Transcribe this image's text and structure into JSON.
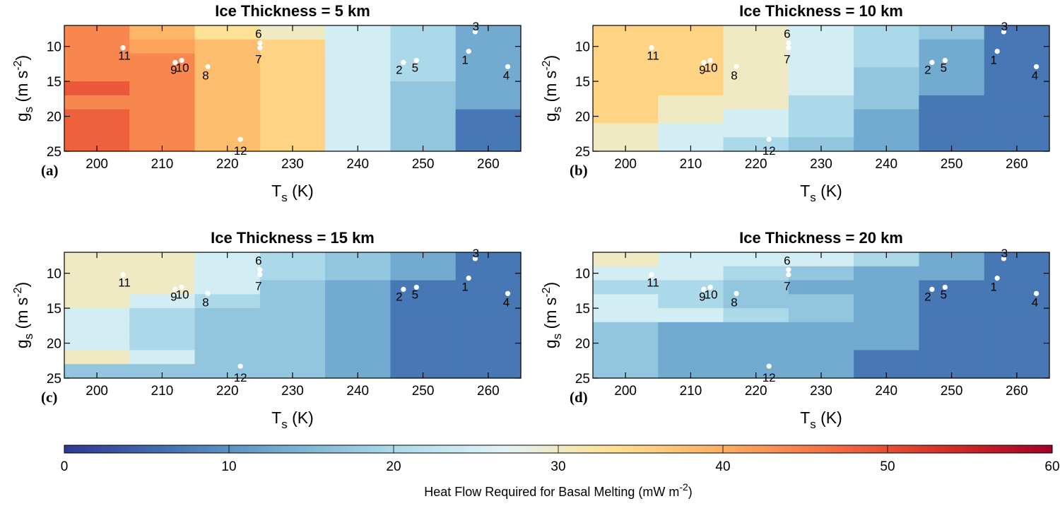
{
  "chart_data": {
    "type": "heatmap",
    "xlabel_base": "T",
    "xlabel_sub": "s",
    "xlabel_unit": "(K)",
    "ylabel_base": "g",
    "ylabel_sub": "s",
    "ylabel_unit_pre": "(m s",
    "ylabel_unit_exp": "-2",
    "ylabel_unit_post": ")",
    "x_ticks": [
      "200",
      "210",
      "220",
      "230",
      "240",
      "250",
      "260"
    ],
    "y_ticks": [
      "10",
      "15",
      "20",
      "25"
    ],
    "xlim": [
      195,
      265
    ],
    "ylim": [
      7,
      25
    ],
    "x_edges": [
      195,
      205,
      215,
      225,
      235,
      245,
      255,
      265
    ],
    "y_edges": [
      7,
      9,
      11,
      13,
      15,
      17,
      19,
      21,
      23,
      25
    ],
    "colorbar": {
      "label_pre": "Heat Flow Required for Basal Melting (mW m",
      "label_exp": "-2",
      "label_post": ")",
      "ticks": [
        "0",
        "10",
        "20",
        "30",
        "40",
        "50",
        "60"
      ],
      "range": [
        0,
        60
      ],
      "colormap": [
        "#313695",
        "#4575b4",
        "#74add1",
        "#abd9e9",
        "#e0f3f8",
        "#fee090",
        "#fdae61",
        "#f46d43",
        "#d73027",
        "#a50026"
      ]
    },
    "stations": [
      {
        "label": "1",
        "T": 257,
        "g": 10.7
      },
      {
        "label": "2",
        "T": 247,
        "g": 12.3
      },
      {
        "label": "3",
        "T": 258,
        "g": 7.9
      },
      {
        "label": "4",
        "T": 263,
        "g": 12.9
      },
      {
        "label": "5",
        "T": 249,
        "g": 12.0
      },
      {
        "label": "6",
        "T": 225,
        "g": 9.5
      },
      {
        "label": "7",
        "T": 225,
        "g": 10.2
      },
      {
        "label": "8",
        "T": 217,
        "g": 12.9
      },
      {
        "label": "9",
        "T": 212,
        "g": 12.3
      },
      {
        "label": "10",
        "T": 213,
        "g": 12.0
      },
      {
        "label": "11",
        "T": 204,
        "g": 10.2
      },
      {
        "label": "12",
        "T": 222,
        "g": 23.3
      }
    ],
    "panels": [
      {
        "letter": "(a)",
        "title": "Ice Thickness = 5 km",
        "grid": [
          [
            44,
            39,
            33,
            30,
            25,
            20,
            13
          ],
          [
            44,
            41,
            38,
            35,
            25,
            20,
            13
          ],
          [
            44,
            44,
            38,
            35,
            25,
            20,
            13
          ],
          [
            44,
            44,
            38,
            35,
            25,
            20,
            13
          ],
          [
            49,
            44,
            38,
            35,
            25,
            17,
            13
          ],
          [
            44,
            44,
            38,
            35,
            25,
            17,
            13
          ],
          [
            48,
            44,
            38,
            35,
            25,
            17,
            7
          ],
          [
            48,
            44,
            38,
            35,
            25,
            17,
            7
          ],
          [
            48,
            44,
            38,
            35,
            25,
            17,
            7
          ]
        ]
      },
      {
        "letter": "(b)",
        "title": "Ice Thickness = 10 km",
        "grid": [
          [
            35,
            35,
            30,
            25,
            20,
            17,
            7
          ],
          [
            35,
            35,
            30,
            25,
            20,
            13,
            7
          ],
          [
            35,
            35,
            30,
            25,
            20,
            13,
            7
          ],
          [
            35,
            35,
            30,
            25,
            17,
            13,
            7
          ],
          [
            35,
            35,
            30,
            25,
            17,
            13,
            7
          ],
          [
            35,
            30,
            30,
            20,
            17,
            7,
            7
          ],
          [
            35,
            30,
            25,
            20,
            13,
            7,
            7
          ],
          [
            30,
            25,
            25,
            20,
            13,
            7,
            7
          ],
          [
            30,
            25,
            20,
            17,
            13,
            7,
            7
          ]
        ]
      },
      {
        "letter": "(c)",
        "title": "Ice Thickness = 15 km",
        "grid": [
          [
            30,
            30,
            25,
            20,
            17,
            13,
            7
          ],
          [
            30,
            30,
            25,
            20,
            17,
            13,
            7
          ],
          [
            30,
            30,
            25,
            17,
            13,
            7,
            7
          ],
          [
            30,
            25,
            20,
            17,
            13,
            7,
            7
          ],
          [
            25,
            20,
            17,
            17,
            13,
            7,
            7
          ],
          [
            25,
            20,
            17,
            17,
            13,
            7,
            7
          ],
          [
            25,
            20,
            17,
            17,
            13,
            7,
            7
          ],
          [
            30,
            25,
            17,
            17,
            13,
            7,
            7
          ],
          [
            17,
            17,
            17,
            17,
            13,
            7,
            7
          ]
        ]
      },
      {
        "letter": "(d)",
        "title": "Ice Thickness = 20 km",
        "grid": [
          [
            30,
            25,
            25,
            25,
            20,
            13,
            7
          ],
          [
            25,
            25,
            20,
            17,
            13,
            13,
            7
          ],
          [
            20,
            20,
            17,
            13,
            13,
            7,
            7
          ],
          [
            25,
            20,
            17,
            17,
            13,
            7,
            7
          ],
          [
            25,
            25,
            20,
            17,
            13,
            7,
            7
          ],
          [
            17,
            13,
            13,
            13,
            13,
            7,
            7
          ],
          [
            17,
            13,
            13,
            13,
            13,
            7,
            7
          ],
          [
            17,
            13,
            13,
            13,
            7,
            7,
            7
          ],
          [
            17,
            13,
            13,
            13,
            7,
            7,
            7
          ]
        ]
      }
    ]
  }
}
